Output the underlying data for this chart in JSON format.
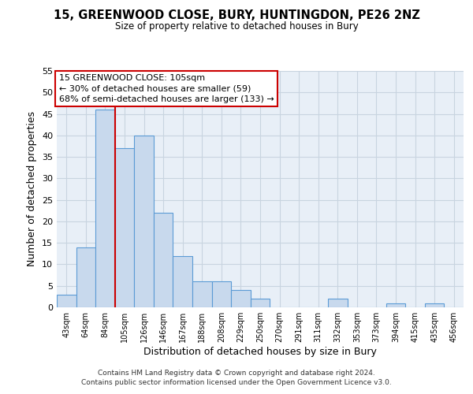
{
  "title": "15, GREENWOOD CLOSE, BURY, HUNTINGDON, PE26 2NZ",
  "subtitle": "Size of property relative to detached houses in Bury",
  "xlabel": "Distribution of detached houses by size in Bury",
  "ylabel": "Number of detached properties",
  "bin_labels": [
    "43sqm",
    "64sqm",
    "84sqm",
    "105sqm",
    "126sqm",
    "146sqm",
    "167sqm",
    "188sqm",
    "208sqm",
    "229sqm",
    "250sqm",
    "270sqm",
    "291sqm",
    "311sqm",
    "332sqm",
    "353sqm",
    "373sqm",
    "394sqm",
    "415sqm",
    "435sqm",
    "456sqm"
  ],
  "bar_values": [
    3,
    14,
    46,
    37,
    40,
    22,
    12,
    6,
    6,
    4,
    2,
    0,
    0,
    0,
    2,
    0,
    0,
    1,
    0,
    1,
    0
  ],
  "bar_color": "#c8d9ed",
  "bar_edge_color": "#5b9bd5",
  "vline_index": 3,
  "vline_color": "#cc0000",
  "ylim": [
    0,
    55
  ],
  "yticks": [
    0,
    5,
    10,
    15,
    20,
    25,
    30,
    35,
    40,
    45,
    50,
    55
  ],
  "annotation_text": "15 GREENWOOD CLOSE: 105sqm\n← 30% of detached houses are smaller (59)\n68% of semi-detached houses are larger (133) →",
  "annotation_box_color": "#ffffff",
  "annotation_box_edge": "#cc0000",
  "footer1": "Contains HM Land Registry data © Crown copyright and database right 2024.",
  "footer2": "Contains public sector information licensed under the Open Government Licence v3.0.",
  "background_color": "#ffffff",
  "plot_bg_color": "#e8eff7",
  "grid_color": "#c8d4e0"
}
